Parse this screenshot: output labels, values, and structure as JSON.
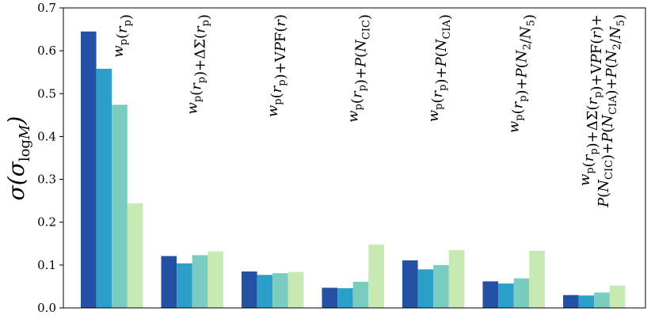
{
  "chart_data": {
    "type": "bar",
    "ylabel": "σ(σ_logM)",
    "ylim": [
      0,
      0.7
    ],
    "yticks": [
      "0.0",
      "0.1",
      "0.2",
      "0.3",
      "0.4",
      "0.5",
      "0.6",
      "0.7"
    ],
    "grid": false,
    "legend": "none",
    "categories": [
      [
        "w_p(r_p)"
      ],
      [
        "w_p(r_p)+ΔΣ(r_p)"
      ],
      [
        "w_p(r_p)+VPF(r)"
      ],
      [
        "w_p(r_p)+P(N_CIC)"
      ],
      [
        "w_p(r_p)+P(N_CIA)"
      ],
      [
        "w_p(r_p)+P(N_2/N_5)"
      ],
      [
        "w_p(r_p)+ΔΣ(r_p)+VPF(r)+",
        "P(N_CIC)+P(N_CIA)+P(N_2/N_5)"
      ]
    ],
    "series": [
      {
        "color": "#2451a4",
        "values": [
          0.645,
          0.121,
          0.085,
          0.047,
          0.111,
          0.062,
          0.03
        ]
      },
      {
        "color": "#2b9fca",
        "values": [
          0.558,
          0.104,
          0.077,
          0.046,
          0.09,
          0.057,
          0.029
        ]
      },
      {
        "color": "#7accc0",
        "values": [
          0.474,
          0.123,
          0.081,
          0.061,
          0.1,
          0.069,
          0.036
        ]
      },
      {
        "color": "#c7eab3",
        "values": [
          0.244,
          0.132,
          0.084,
          0.148,
          0.135,
          0.133,
          0.052
        ]
      }
    ]
  }
}
